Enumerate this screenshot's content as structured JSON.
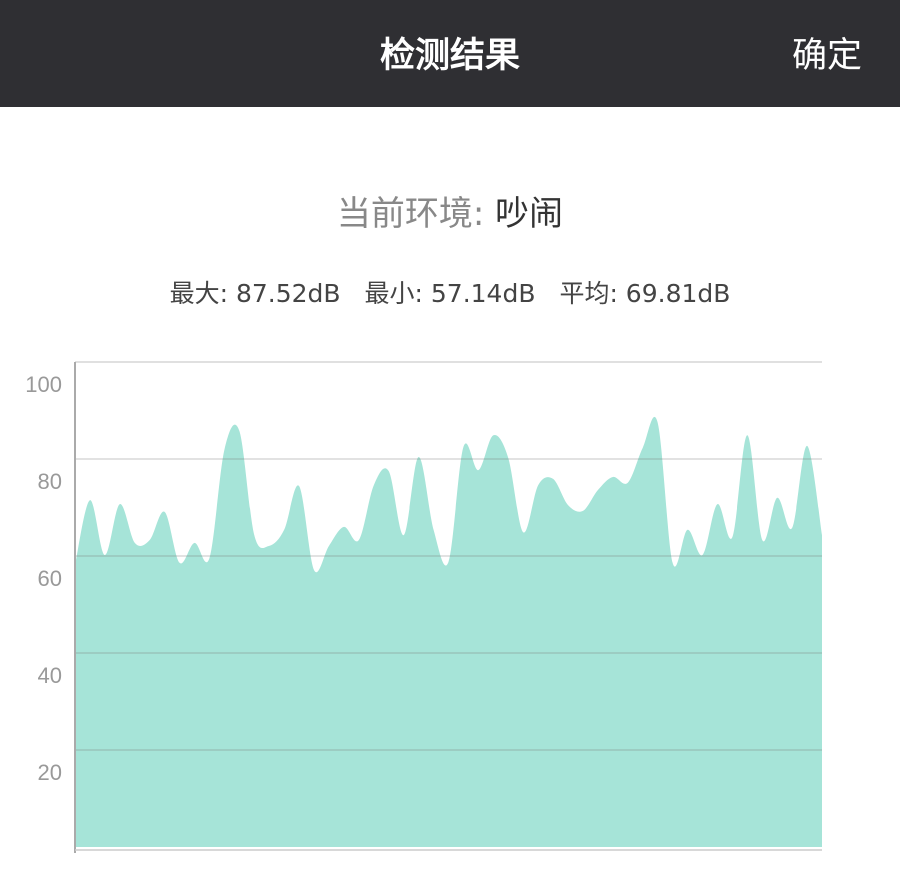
{
  "header": {
    "title": "检测结果",
    "confirm_label": "确定"
  },
  "environment": {
    "label": "当前环境: ",
    "value": "吵闹"
  },
  "stats": {
    "max": "最大: 87.52dB",
    "min": "最小: 57.14dB",
    "avg": "平均: 69.81dB"
  },
  "colors": {
    "header_bg": "#2f2f33",
    "area_fill": "#a6e4d8",
    "grid": "#d6d6d6"
  },
  "chart_data": {
    "type": "area",
    "ylim": [
      0,
      100
    ],
    "yticks": [
      20,
      40,
      60,
      80,
      100
    ],
    "grid": true,
    "values": [
      58.1,
      71.5,
      60.2,
      70.7,
      62.7,
      63.3,
      69.1,
      58.6,
      62.7,
      59.6,
      81.9,
      85.8,
      64.3,
      62.1,
      65.4,
      74.4,
      57.1,
      62.1,
      66.0,
      63.3,
      74.6,
      77.5,
      64.3,
      80.4,
      65.4,
      58.8,
      82.5,
      77.7,
      84.9,
      80.2,
      64.9,
      74.6,
      75.9,
      70.5,
      69.3,
      73.6,
      76.3,
      75.1,
      82.3,
      87.5,
      58.6,
      65.4,
      60.2,
      70.7,
      63.9,
      84.9,
      63.3,
      72.0,
      65.8,
      82.7,
      64.3
    ]
  }
}
